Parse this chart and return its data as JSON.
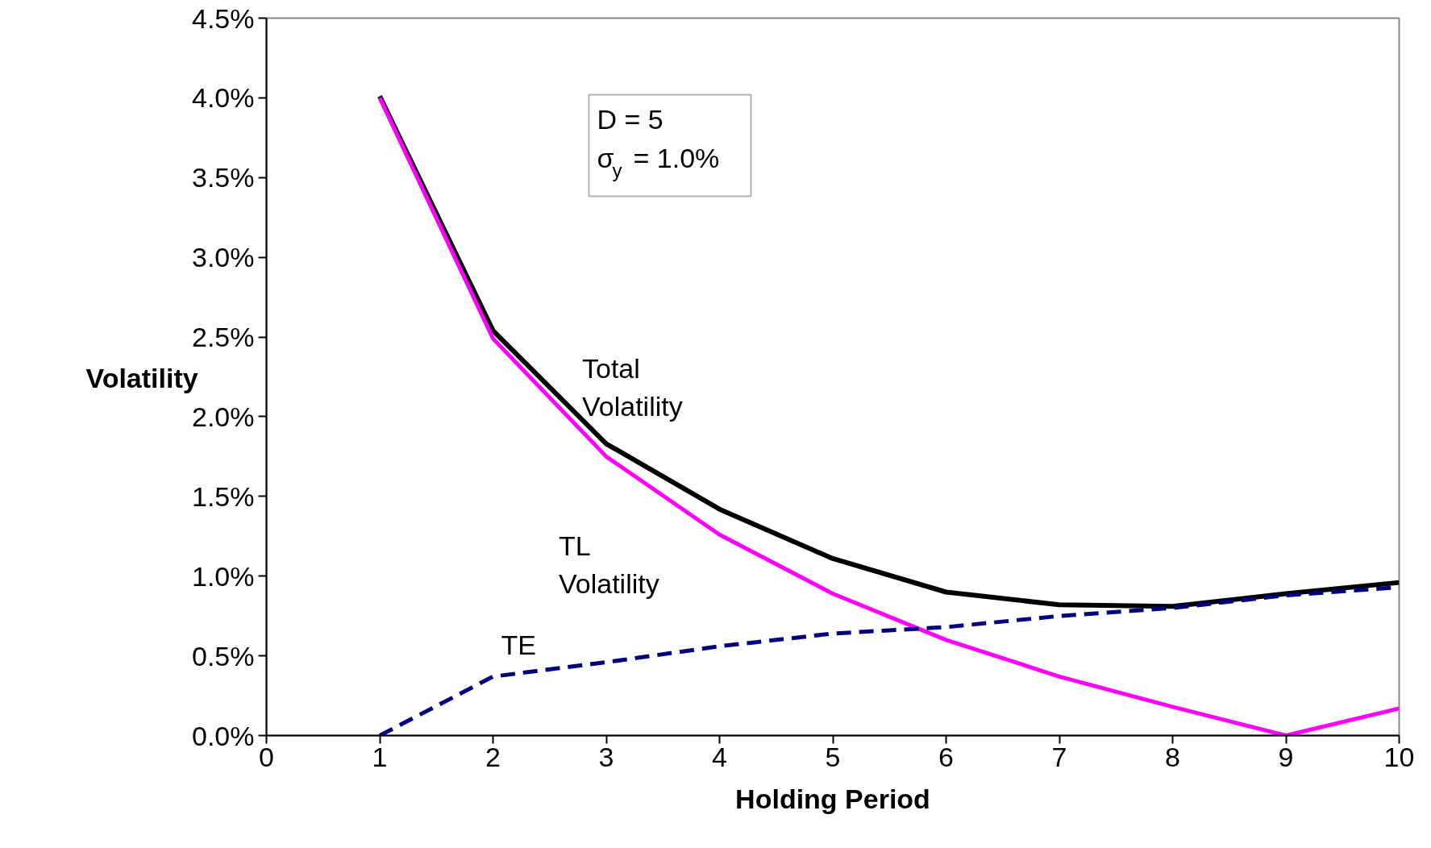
{
  "chart_data": {
    "type": "line",
    "xlabel": "Holding Period",
    "ylabel": "Volatility",
    "x": [
      1,
      2,
      3,
      4,
      5,
      6,
      7,
      8,
      9,
      10
    ],
    "series": [
      {
        "name": "Total Volatility",
        "color": "#000000",
        "line_style": "solid",
        "values": [
          4.01,
          2.54,
          1.83,
          1.42,
          1.11,
          0.9,
          0.82,
          0.81,
          0.89,
          0.96
        ]
      },
      {
        "name": "TL Volatility",
        "color": "#ff00ff",
        "line_style": "solid",
        "values": [
          4.0,
          2.49,
          1.75,
          1.26,
          0.89,
          0.6,
          0.37,
          0.18,
          0.0,
          0.17
        ]
      },
      {
        "name": "TE",
        "color": "#000080",
        "line_style": "dashed",
        "values": [
          0.0,
          0.37,
          0.46,
          0.56,
          0.64,
          0.68,
          0.75,
          0.8,
          0.88,
          0.93
        ]
      }
    ],
    "xlim": [
      0,
      10
    ],
    "xticks": [
      0,
      1,
      2,
      3,
      4,
      5,
      6,
      7,
      8,
      9,
      10
    ],
    "ylim": [
      0,
      4.5
    ],
    "yticks": [
      {
        "value": 0,
        "label": "0.0%"
      },
      {
        "value": 0.5,
        "label": "0.5%"
      },
      {
        "value": 1,
        "label": "1.0%"
      },
      {
        "value": 1.5,
        "label": "1.5%"
      },
      {
        "value": 2,
        "label": "2.0%"
      },
      {
        "value": 2.5,
        "label": "2.5%"
      },
      {
        "value": 3,
        "label": "3.0%"
      },
      {
        "value": 3.5,
        "label": "3.5%"
      },
      {
        "value": 4,
        "label": "4.0%"
      },
      {
        "value": 4.5,
        "label": "4.5%"
      }
    ],
    "grid": false,
    "marker": "none",
    "annotations": [
      "D = 5",
      "σ$_{y}$ = 1.0%"
    ]
  }
}
